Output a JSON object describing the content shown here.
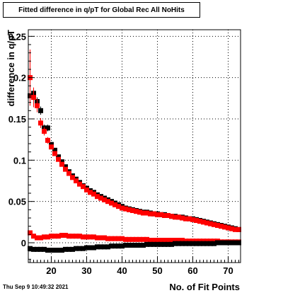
{
  "header": {
    "title": "Fitted difference in q/pT for Global Rec All NoHits",
    "timestamp": "Thu Sep  9 10:49:32 2021"
  },
  "chart_data": {
    "type": "scatter",
    "title": "Fitted difference in q/pT for Global Rec All NoHits",
    "xlabel": "No. of Fit Points",
    "ylabel": "difference in q/pT",
    "xlim": [
      13.5,
      73.5
    ],
    "ylim": [
      -0.024,
      0.258
    ],
    "xticks": [
      20,
      30,
      40,
      50,
      60,
      70
    ],
    "yticks": [
      0,
      0.05,
      0.1,
      0.15,
      0.2,
      0.25
    ],
    "ytick_labels": [
      "0",
      "0.05",
      "0.1",
      "0.15",
      "0.2",
      "0.25"
    ],
    "grid": true,
    "legend": "none",
    "x": [
      14,
      15,
      16,
      17,
      18,
      19,
      20,
      21,
      22,
      23,
      24,
      25,
      26,
      27,
      28,
      29,
      30,
      31,
      32,
      33,
      34,
      35,
      36,
      37,
      38,
      39,
      40,
      41,
      42,
      43,
      44,
      45,
      46,
      47,
      48,
      49,
      50,
      51,
      52,
      53,
      54,
      55,
      56,
      57,
      58,
      59,
      60,
      61,
      62,
      63,
      64,
      65,
      66,
      67,
      68,
      69,
      70,
      71,
      72,
      73
    ],
    "series": [
      {
        "color": "#000000",
        "values": [
          0.178,
          0.181,
          0.171,
          0.16,
          0.139,
          0.139,
          0.119,
          0.112,
          0.104,
          0.098,
          0.092,
          0.086,
          0.081,
          0.077,
          0.073,
          0.069,
          0.066,
          0.063,
          0.061,
          0.058,
          0.056,
          0.054,
          0.052,
          0.05,
          0.048,
          0.046,
          0.044,
          0.042,
          0.041,
          0.04,
          0.039,
          0.038,
          0.037,
          0.037,
          0.036,
          0.035,
          0.035,
          0.034,
          0.034,
          0.033,
          0.032,
          0.032,
          0.031,
          0.031,
          0.03,
          0.029,
          0.029,
          0.028,
          0.027,
          0.026,
          0.025,
          0.024,
          0.023,
          0.022,
          0.021,
          0.02,
          0.019,
          0.018,
          0.017,
          0.016
        ],
        "errors": [
          0.008,
          0.006,
          0.005,
          0.005,
          0.004,
          0.004,
          0.003,
          0.003,
          0.002,
          0.002,
          0.002,
          0.002,
          0.002,
          0.001,
          0.001,
          0.001,
          0.001,
          0.001,
          0.001,
          0.001,
          0.001,
          0.001,
          0.001,
          0.001,
          0.001,
          0.001,
          0.001,
          0.001,
          0.001,
          0.001,
          0.001,
          0.001,
          0.001,
          0.001,
          0.001,
          0.001,
          0.001,
          0.001,
          0.001,
          0.001,
          0.001,
          0.001,
          0.001,
          0.001,
          0.001,
          0.001,
          0.001,
          0.001,
          0.001,
          0.001,
          0.001,
          0.001,
          0.001,
          0.001,
          0.001,
          0.001,
          0.001,
          0.001,
          0.001,
          0.001
        ]
      },
      {
        "color": "#ff0000",
        "values": [
          0.2,
          0.176,
          0.166,
          0.145,
          0.135,
          0.124,
          0.116,
          0.108,
          0.101,
          0.095,
          0.089,
          0.084,
          0.079,
          0.075,
          0.071,
          0.068,
          0.064,
          0.061,
          0.059,
          0.056,
          0.054,
          0.052,
          0.05,
          0.048,
          0.046,
          0.044,
          0.042,
          0.041,
          0.04,
          0.039,
          0.038,
          0.037,
          0.036,
          0.036,
          0.035,
          0.035,
          0.034,
          0.034,
          0.033,
          0.033,
          0.032,
          0.031,
          0.031,
          0.03,
          0.029,
          0.029,
          0.028,
          0.027,
          0.026,
          0.025,
          0.024,
          0.023,
          0.022,
          0.021,
          0.02,
          0.019,
          0.018,
          0.017,
          0.016,
          0.016
        ],
        "errors": [
          0.034,
          0.012,
          0.008,
          0.006,
          0.005,
          0.004,
          0.003,
          0.003,
          0.002,
          0.002,
          0.002,
          0.002,
          0.002,
          0.001,
          0.001,
          0.001,
          0.001,
          0.001,
          0.001,
          0.001,
          0.001,
          0.001,
          0.001,
          0.001,
          0.001,
          0.001,
          0.001,
          0.001,
          0.001,
          0.001,
          0.001,
          0.001,
          0.001,
          0.001,
          0.001,
          0.001,
          0.001,
          0.001,
          0.001,
          0.001,
          0.001,
          0.001,
          0.001,
          0.001,
          0.001,
          0.001,
          0.001,
          0.001,
          0.001,
          0.001,
          0.001,
          0.001,
          0.001,
          0.001,
          0.001,
          0.001,
          0.001,
          0.001,
          0.001,
          0.001
        ]
      },
      {
        "color": "#ff0000",
        "values": [
          0.012,
          0.008,
          0.006,
          0.006,
          0.007,
          0.007,
          0.008,
          0.008,
          0.008,
          0.009,
          0.009,
          0.008,
          0.008,
          0.008,
          0.008,
          0.007,
          0.007,
          0.007,
          0.007,
          0.006,
          0.006,
          0.006,
          0.005,
          0.005,
          0.005,
          0.005,
          0.005,
          0.004,
          0.004,
          0.004,
          0.004,
          0.004,
          0.004,
          0.004,
          0.003,
          0.003,
          0.003,
          0.003,
          0.003,
          0.003,
          0.003,
          0.003,
          0.003,
          0.003,
          0.002,
          0.002,
          0.002,
          0.002,
          0.002,
          0.002,
          0.002,
          0.002,
          0.002,
          0.002,
          0.001,
          0.001,
          0.001,
          0.001,
          0.001,
          0.001
        ],
        "errors": [
          0.003,
          0.001,
          0.001,
          0.001,
          0.001,
          0.001,
          0.001,
          0.001,
          0.001,
          0.001,
          0.001,
          0.001,
          0.001,
          0.001,
          0.001,
          0.001,
          0.001,
          0.001,
          0.001,
          0.001,
          0.001,
          0.001,
          0.001,
          0.001,
          0.001,
          0.001,
          0.001,
          0.001,
          0.001,
          0.001,
          0.001,
          0.001,
          0.001,
          0.001,
          0.001,
          0.001,
          0.001,
          0.001,
          0.001,
          0.001,
          0.001,
          0.001,
          0.001,
          0.001,
          0.001,
          0.001,
          0.001,
          0.001,
          0.001,
          0.001,
          0.001,
          0.001,
          0.001,
          0.001,
          0.001,
          0.001,
          0.001,
          0.001,
          0.001,
          0.001
        ]
      },
      {
        "color": "#000000",
        "values": [
          -0.007,
          -0.008,
          -0.008,
          -0.008,
          -0.008,
          -0.009,
          -0.009,
          -0.009,
          -0.009,
          -0.009,
          -0.008,
          -0.008,
          -0.008,
          -0.007,
          -0.007,
          -0.007,
          -0.006,
          -0.006,
          -0.006,
          -0.005,
          -0.005,
          -0.005,
          -0.005,
          -0.004,
          -0.004,
          -0.004,
          -0.004,
          -0.003,
          -0.003,
          -0.003,
          -0.003,
          -0.003,
          -0.003,
          -0.002,
          -0.002,
          -0.002,
          -0.002,
          -0.002,
          -0.002,
          -0.002,
          -0.002,
          -0.001,
          -0.001,
          -0.001,
          -0.001,
          -0.001,
          -0.001,
          -0.001,
          -0.001,
          -0.001,
          -0.001,
          -0.001,
          -0.001,
          0.0,
          0.0,
          0.0,
          0.0,
          0.0,
          0.0,
          0.0
        ],
        "errors": [
          0.002,
          0.001,
          0.001,
          0.001,
          0.001,
          0.001,
          0.001,
          0.001,
          0.001,
          0.001,
          0.001,
          0.001,
          0.001,
          0.001,
          0.001,
          0.001,
          0.001,
          0.001,
          0.001,
          0.001,
          0.001,
          0.001,
          0.001,
          0.001,
          0.001,
          0.001,
          0.001,
          0.001,
          0.001,
          0.001,
          0.001,
          0.001,
          0.001,
          0.001,
          0.001,
          0.001,
          0.001,
          0.001,
          0.001,
          0.001,
          0.001,
          0.001,
          0.001,
          0.001,
          0.001,
          0.001,
          0.001,
          0.001,
          0.001,
          0.001,
          0.001,
          0.001,
          0.001,
          0.001,
          0.001,
          0.001,
          0.001,
          0.001,
          0.001,
          0.001
        ]
      }
    ]
  }
}
